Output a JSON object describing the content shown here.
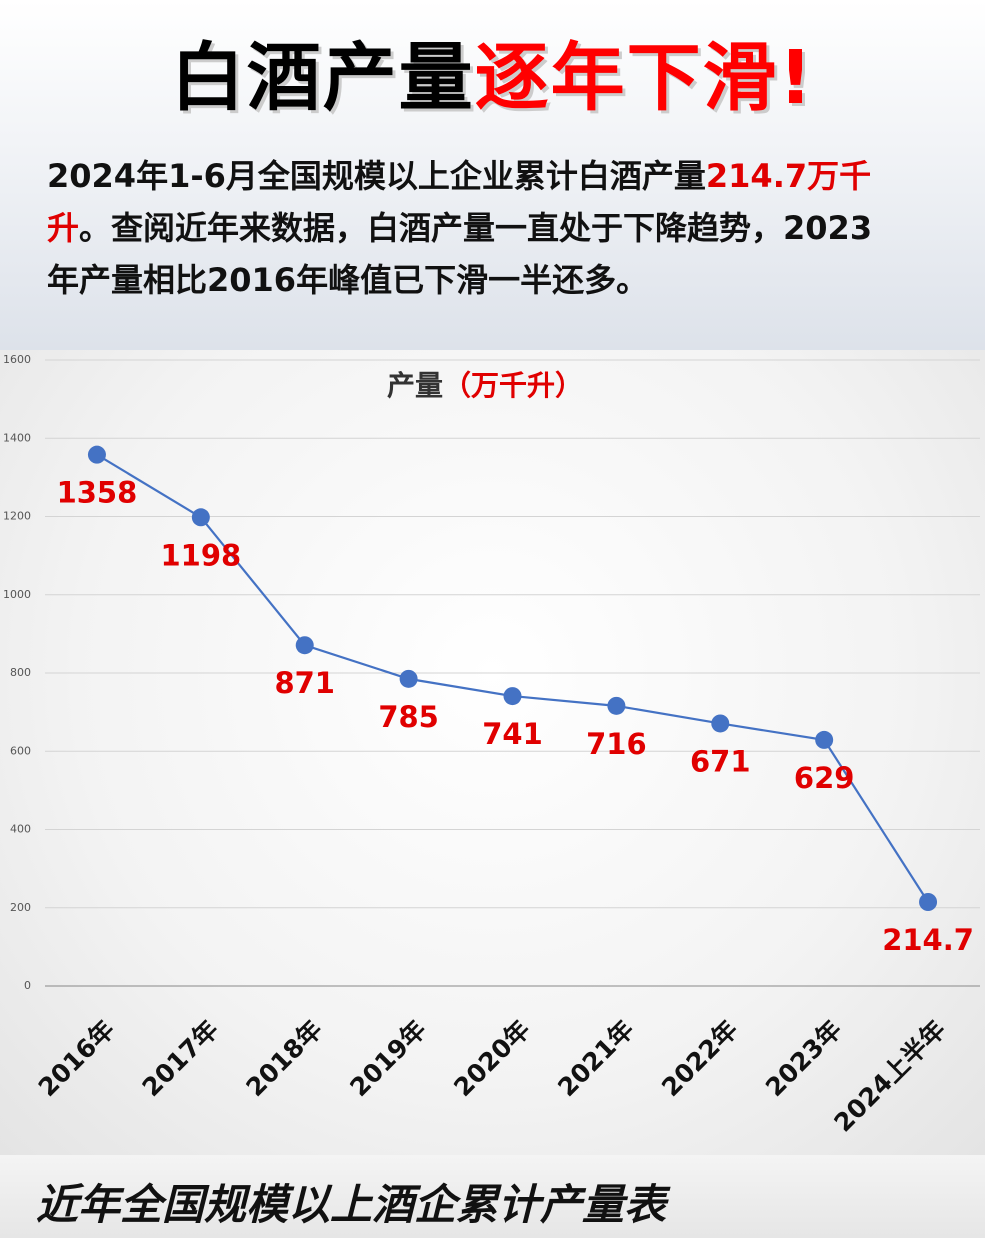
{
  "header": {
    "title": [
      {
        "text": "白酒产量",
        "color": "#000000"
      },
      {
        "text": "逐年下滑!",
        "color": "#ff0000"
      }
    ]
  },
  "intro": {
    "segments": [
      {
        "text": "2024年1-6月全国规模以上企业累计白酒产量",
        "color": "#111111"
      },
      {
        "text": "214.7万千升",
        "color": "#e00000"
      },
      {
        "text": "。查阅近年来数据，白酒产量一直处于下降趋势，2023年产量相比2016年峰值已下滑一半还多。",
        "color": "#111111"
      }
    ]
  },
  "chart_data": {
    "type": "line",
    "title": "产量",
    "title_unit": "（万千升）",
    "categories": [
      "2016年",
      "2017年",
      "2018年",
      "2019年",
      "2020年",
      "2021年",
      "2022年",
      "2023年",
      "2024上半年"
    ],
    "values": [
      1358,
      1198,
      871,
      785,
      741,
      716,
      671,
      629,
      214.7
    ],
    "color": "#4472c4",
    "label_color": "#e00000",
    "ylim": [
      0,
      1600
    ],
    "yticks": [
      0,
      200,
      400,
      600,
      800,
      1000,
      1200,
      1400,
      1600
    ],
    "grid": true
  },
  "footer": {
    "caption": "近年全国规模以上酒企累计产量表"
  }
}
